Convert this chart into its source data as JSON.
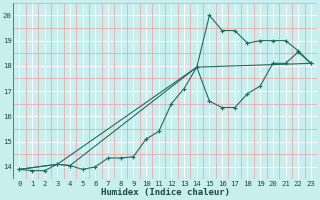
{
  "xlabel": "Humidex (Indice chaleur)",
  "bg_color": "#c8eeed",
  "line_color": "#1a6e62",
  "grid_white": "#ffffff",
  "grid_red": "#f0a0a0",
  "xlim": [
    -0.5,
    23.5
  ],
  "ylim": [
    13.5,
    20.5
  ],
  "xticks": [
    0,
    1,
    2,
    3,
    4,
    5,
    6,
    7,
    8,
    9,
    10,
    11,
    12,
    13,
    14,
    15,
    16,
    17,
    18,
    19,
    20,
    21,
    22,
    23
  ],
  "yticks": [
    14,
    15,
    16,
    17,
    18,
    19,
    20
  ],
  "line1_x": [
    0,
    1,
    2,
    3,
    4,
    5,
    6,
    7,
    8,
    9,
    10,
    11,
    12,
    13,
    14,
    15,
    16,
    17,
    18,
    19,
    20,
    21,
    22,
    23
  ],
  "line1_y": [
    13.9,
    13.85,
    13.85,
    14.1,
    14.05,
    13.9,
    14.0,
    14.35,
    14.35,
    14.4,
    15.1,
    15.4,
    16.5,
    17.1,
    17.95,
    16.6,
    16.35,
    16.35,
    16.9,
    17.2,
    18.1,
    18.1,
    18.55,
    18.1
  ],
  "line2_x": [
    0,
    3,
    4,
    14,
    15,
    16,
    17,
    18,
    19,
    20,
    21,
    22,
    23
  ],
  "line2_y": [
    13.9,
    14.1,
    14.05,
    17.95,
    20.0,
    19.4,
    19.4,
    18.9,
    19.0,
    19.0,
    19.0,
    18.6,
    18.1
  ],
  "line3_x": [
    0,
    3,
    14,
    23
  ],
  "line3_y": [
    13.9,
    14.1,
    17.95,
    18.1
  ],
  "xlabel_fontsize": 6.5,
  "tick_fontsize": 5.2
}
